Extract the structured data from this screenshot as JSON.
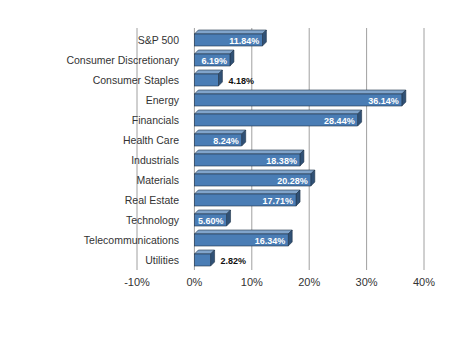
{
  "chart_data": {
    "type": "bar",
    "orientation": "horizontal",
    "categories": [
      "S&P 500",
      "Consumer Discretionary",
      "Consumer Staples",
      "Energy",
      "Financials",
      "Health Care",
      "Industrials",
      "Materials",
      "Real Estate",
      "Technology",
      "Telecommunications",
      "Utilities"
    ],
    "values": [
      11.84,
      6.19,
      4.18,
      36.14,
      28.44,
      8.24,
      18.38,
      20.28,
      17.71,
      5.6,
      16.34,
      2.82
    ],
    "value_labels": [
      "11.84%",
      "6.19%",
      "4.18%",
      "36.14%",
      "28.44%",
      "8.24%",
      "18.38%",
      "20.28%",
      "17.71%",
      "5.60%",
      "16.34%",
      "2.82%"
    ],
    "color": "#4a7db5",
    "xlim": [
      -10,
      40
    ],
    "xticks": [
      {
        "value": -10,
        "label": "-10%"
      },
      {
        "value": 0,
        "label": "0%"
      },
      {
        "value": 10,
        "label": "10%"
      },
      {
        "value": 20,
        "label": "20%"
      },
      {
        "value": 30,
        "label": "30%"
      },
      {
        "value": 40,
        "label": "40%"
      }
    ],
    "grid": true,
    "data_labels": true
  }
}
